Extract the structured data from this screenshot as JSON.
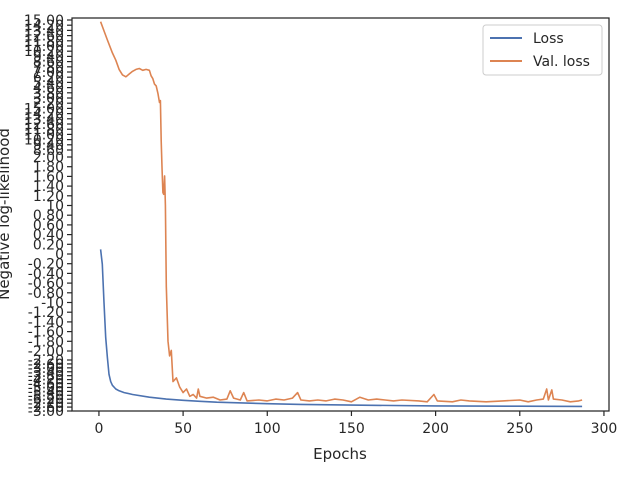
{
  "chart_data": {
    "type": "line",
    "title": "",
    "xlabel": "Epochs",
    "ylabel": "Negative log-likelihood",
    "xlim": [
      -16,
      303
    ],
    "ylim": [
      -6.2,
      15.2
    ],
    "grid": false,
    "legend_position": "top-right",
    "x_ticks": [
      0,
      50,
      100,
      150,
      200,
      250,
      300
    ],
    "y_tick_labels_readable": [
      "2.00",
      "1.80",
      "1.60",
      "1.40",
      "1.20",
      "10",
      "0.80",
      "0.60",
      "0.40",
      "0.20",
      "0",
      "-0.20",
      "-0.40",
      "-0.60",
      "-0.80",
      "-10",
      "-1.20",
      "-1.40",
      "-1.60",
      "-1.80",
      "-2.00"
    ],
    "y_tick_labels_dense_note": "y-axis tick labels overlap near top and bottom (illegible)",
    "series": [
      {
        "name": "Loss",
        "color": "#4c72b0",
        "points": [
          [
            1,
            2.6
          ],
          [
            2,
            1.8
          ],
          [
            3,
            -0.3
          ],
          [
            4,
            -2.2
          ],
          [
            5,
            -3.3
          ],
          [
            6,
            -4.2
          ],
          [
            7,
            -4.6
          ],
          [
            8,
            -4.8
          ],
          [
            10,
            -5.0
          ],
          [
            12,
            -5.1
          ],
          [
            15,
            -5.2
          ],
          [
            20,
            -5.3
          ],
          [
            30,
            -5.45
          ],
          [
            40,
            -5.55
          ],
          [
            50,
            -5.62
          ],
          [
            60,
            -5.67
          ],
          [
            70,
            -5.72
          ],
          [
            80,
            -5.75
          ],
          [
            100,
            -5.8
          ],
          [
            120,
            -5.84
          ],
          [
            150,
            -5.88
          ],
          [
            200,
            -5.92
          ],
          [
            250,
            -5.94
          ],
          [
            287,
            -5.95
          ]
        ]
      },
      {
        "name": "Val. loss",
        "color": "#dd8452",
        "points": [
          [
            1,
            15.0
          ],
          [
            3,
            14.5
          ],
          [
            5,
            14.0
          ],
          [
            8,
            13.3
          ],
          [
            10,
            12.9
          ],
          [
            12,
            12.4
          ],
          [
            14,
            12.1
          ],
          [
            16,
            12.0
          ],
          [
            18,
            12.15
          ],
          [
            20,
            12.3
          ],
          [
            22,
            12.4
          ],
          [
            24,
            12.45
          ],
          [
            26,
            12.35
          ],
          [
            28,
            12.4
          ],
          [
            30,
            12.35
          ],
          [
            31,
            12.05
          ],
          [
            32,
            11.9
          ],
          [
            33,
            11.6
          ],
          [
            34,
            11.5
          ],
          [
            35,
            11.1
          ],
          [
            36,
            10.6
          ],
          [
            36.5,
            10.7
          ],
          [
            37,
            8.5
          ],
          [
            37.5,
            6.9
          ],
          [
            38,
            5.7
          ],
          [
            38.5,
            5.6
          ],
          [
            39,
            6.6
          ],
          [
            39.5,
            5.0
          ],
          [
            40,
            0.6
          ],
          [
            41,
            -2.4
          ],
          [
            42,
            -3.2
          ],
          [
            43,
            -2.9
          ],
          [
            44,
            -4.6
          ],
          [
            46,
            -4.4
          ],
          [
            48,
            -4.9
          ],
          [
            50,
            -5.2
          ],
          [
            52,
            -5.0
          ],
          [
            54,
            -5.4
          ],
          [
            56,
            -5.3
          ],
          [
            58,
            -5.5
          ],
          [
            59,
            -5.0
          ],
          [
            60,
            -5.4
          ],
          [
            64,
            -5.5
          ],
          [
            68,
            -5.45
          ],
          [
            72,
            -5.6
          ],
          [
            76,
            -5.55
          ],
          [
            78,
            -5.1
          ],
          [
            80,
            -5.5
          ],
          [
            84,
            -5.6
          ],
          [
            86,
            -5.2
          ],
          [
            88,
            -5.65
          ],
          [
            95,
            -5.6
          ],
          [
            100,
            -5.65
          ],
          [
            105,
            -5.55
          ],
          [
            110,
            -5.6
          ],
          [
            115,
            -5.5
          ],
          [
            118,
            -5.2
          ],
          [
            120,
            -5.6
          ],
          [
            125,
            -5.65
          ],
          [
            130,
            -5.6
          ],
          [
            135,
            -5.65
          ],
          [
            140,
            -5.55
          ],
          [
            145,
            -5.6
          ],
          [
            150,
            -5.7
          ],
          [
            155,
            -5.45
          ],
          [
            160,
            -5.6
          ],
          [
            165,
            -5.55
          ],
          [
            170,
            -5.6
          ],
          [
            175,
            -5.65
          ],
          [
            180,
            -5.6
          ],
          [
            190,
            -5.65
          ],
          [
            195,
            -5.7
          ],
          [
            199,
            -5.3
          ],
          [
            201,
            -5.65
          ],
          [
            210,
            -5.7
          ],
          [
            215,
            -5.6
          ],
          [
            220,
            -5.65
          ],
          [
            230,
            -5.7
          ],
          [
            240,
            -5.65
          ],
          [
            250,
            -5.6
          ],
          [
            255,
            -5.7
          ],
          [
            260,
            -5.6
          ],
          [
            264,
            -5.55
          ],
          [
            266,
            -5.0
          ],
          [
            267,
            -5.6
          ],
          [
            269,
            -5.05
          ],
          [
            270,
            -5.55
          ],
          [
            275,
            -5.6
          ],
          [
            280,
            -5.7
          ],
          [
            285,
            -5.65
          ],
          [
            287,
            -5.6
          ]
        ]
      }
    ]
  }
}
